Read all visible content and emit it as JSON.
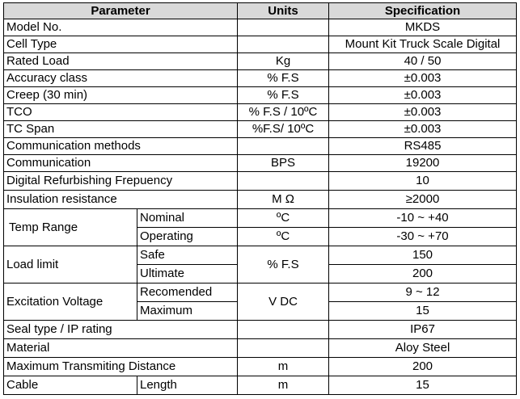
{
  "headers": {
    "parameter": "Parameter",
    "units": "Units",
    "specification": "Specification"
  },
  "rows": [
    {
      "parameter": "Model No.",
      "units": "",
      "spec": "MKDS"
    },
    {
      "parameter": "Cell Type",
      "units": "",
      "spec": "Mount Kit Truck Scale Digital"
    },
    {
      "parameter": "Rated Load",
      "units": "Kg",
      "spec": "40 / 50"
    },
    {
      "parameter": "Accuracy class",
      "units": "% F.S",
      "spec": "±0.003"
    },
    {
      "parameter": "Creep (30 min)",
      "units": "% F.S",
      "spec": "±0.003"
    },
    {
      "parameter": "TCO",
      "units": "% F.S / 10ºC",
      "spec": "±0.003"
    },
    {
      "parameter": "TC Span",
      "units": "%F.S/ 10ºC",
      "spec": "±0.003"
    },
    {
      "parameter": "Communication methods",
      "units": "",
      "spec": "RS485"
    },
    {
      "parameter": "Communication",
      "units": "BPS",
      "spec": "19200"
    },
    {
      "parameter": "Digital Refurbishing Frepuency",
      "units": "",
      "spec": "10"
    },
    {
      "parameter": "Insulation resistance",
      "units": "M Ω",
      "spec": "≥2000"
    }
  ],
  "temp_range": {
    "label": "Temp Range",
    "nominal": {
      "label": "Nominal",
      "units": "ºC",
      "spec": "-10 ~ +40"
    },
    "operating": {
      "label": "Operating",
      "units": "ºC",
      "spec": "-30 ~ +70"
    }
  },
  "load_limit": {
    "label": "Load limit",
    "units": "% F.S",
    "safe": {
      "label": "Safe",
      "spec": "150"
    },
    "ultimate": {
      "label": "Ultimate",
      "spec": "200"
    }
  },
  "excitation": {
    "label": "Excitation Voltage",
    "units": "V DC",
    "recommended": {
      "label": "Recomended",
      "spec": "9 ~ 12"
    },
    "maximum": {
      "label": "Maximum",
      "spec": "15"
    }
  },
  "tail_rows": [
    {
      "parameter": "Seal type / IP rating",
      "units": "",
      "spec": "IP67"
    },
    {
      "parameter": "Material",
      "units": "",
      "spec": "Aloy Steel"
    },
    {
      "parameter": "Maximum Transmiting Distance",
      "units": "m",
      "spec": "200"
    }
  ],
  "cable": {
    "label": "Cable",
    "sub": "Length",
    "units": "m",
    "spec": "15"
  }
}
